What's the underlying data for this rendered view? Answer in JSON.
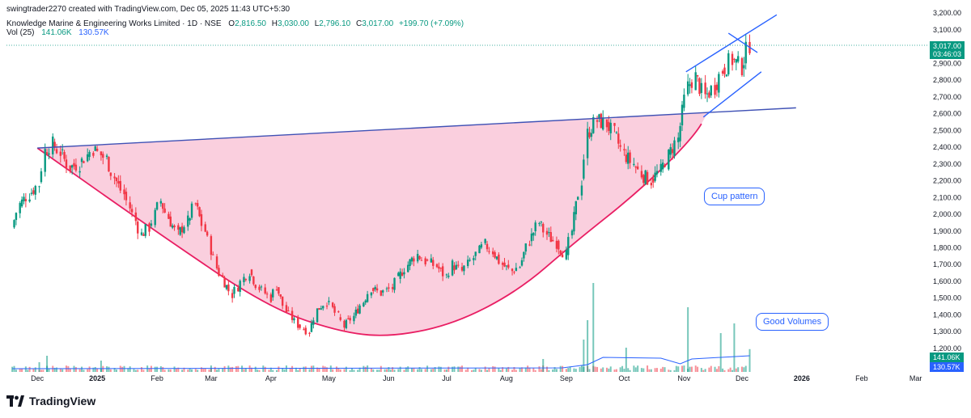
{
  "header": {
    "created_line": "swingtrader2270 created with TradingView.com, Dec 05, 2025 11:43 UTC+5:30",
    "symbol_line": "Knowledge Marine & Engineering Works Limited · 1D · NSE",
    "ohlc": {
      "o_label": "O",
      "o": "2,816.50",
      "h_label": "H",
      "h": "3,030.00",
      "l_label": "L",
      "l": "2,796.10",
      "c_label": "C",
      "c": "3,017.00",
      "chg": "+199.70 (+7.09%)"
    },
    "volume_label": "Vol (25)",
    "volume_a": "141.06K",
    "volume_b": "130.57K"
  },
  "price_tag": {
    "price": "3,017.00",
    "countdown": "03:46:03"
  },
  "volume_tags": {
    "a": "141.06K",
    "b": "130.57K"
  },
  "annotations": {
    "cup": "Cup pattern",
    "volumes": "Good Volumes"
  },
  "logo_text": "TradingView",
  "colors": {
    "up": "#089981",
    "down": "#f23645",
    "cup_fill": "#f8bbd0",
    "cup_line": "#e91e63",
    "trend_line": "#3f51b5",
    "channel": "#2962ff",
    "vol_ma": "#2962ff"
  },
  "chart_data": {
    "type": "candlestick",
    "title": "Knowledge Marine & Engineering Works Limited · 1D · NSE",
    "y_ticks": [
      1200,
      1300,
      1400,
      1500,
      1600,
      1700,
      1800,
      1900,
      2000,
      2100,
      2200,
      2300,
      2400,
      2500,
      2600,
      2700,
      2800,
      2900,
      3000,
      3100,
      3200
    ],
    "y_tick_labels": [
      "1,200.00",
      "1,300.00",
      "1,400.00",
      "1,500.00",
      "1,600.00",
      "1,700.00",
      "1,800.00",
      "1,900.00",
      "2,000.00",
      "2,100.00",
      "2,200.00",
      "2,300.00",
      "2,400.00",
      "2,500.00",
      "2,600.00",
      "2,700.00",
      "2,800.00",
      "2,900.00",
      "3,000.00",
      "3,100.00",
      "3,200.00"
    ],
    "ylim": [
      1050,
      3230
    ],
    "x_labels": [
      {
        "label": "Dec",
        "date": "2024-12-01",
        "bold": false
      },
      {
        "label": "2025",
        "date": "2025-01-01",
        "bold": true
      },
      {
        "label": "Feb",
        "date": "2025-02-01",
        "bold": false
      },
      {
        "label": "Mar",
        "date": "2025-03-01",
        "bold": false
      },
      {
        "label": "Apr",
        "date": "2025-04-01",
        "bold": false
      },
      {
        "label": "May",
        "date": "2025-05-01",
        "bold": false
      },
      {
        "label": "Jun",
        "date": "2025-06-01",
        "bold": false
      },
      {
        "label": "Jul",
        "date": "2025-07-01",
        "bold": false
      },
      {
        "label": "Aug",
        "date": "2025-08-01",
        "bold": false
      },
      {
        "label": "Sep",
        "date": "2025-09-01",
        "bold": false
      },
      {
        "label": "Oct",
        "date": "2025-10-01",
        "bold": false
      },
      {
        "label": "Nov",
        "date": "2025-11-01",
        "bold": false
      },
      {
        "label": "Dec",
        "date": "2025-12-01",
        "bold": false
      },
      {
        "label": "2026",
        "date": "2026-01-01",
        "bold": true
      },
      {
        "label": "Feb",
        "date": "2026-02-01",
        "bold": false
      },
      {
        "label": "Mar",
        "date": "2026-03-01",
        "bold": false
      }
    ],
    "x_range": [
      "2024-11-15",
      "2026-03-07"
    ],
    "close_series": [
      {
        "date": "2024-11-18",
        "close": 1920
      },
      {
        "date": "2024-11-22",
        "close": 2060
      },
      {
        "date": "2024-11-27",
        "close": 2120
      },
      {
        "date": "2024-12-02",
        "close": 2180
      },
      {
        "date": "2024-12-05",
        "close": 2380
      },
      {
        "date": "2024-12-09",
        "close": 2420
      },
      {
        "date": "2024-12-13",
        "close": 2370
      },
      {
        "date": "2024-12-18",
        "close": 2280
      },
      {
        "date": "2024-12-23",
        "close": 2300
      },
      {
        "date": "2024-12-30",
        "close": 2390
      },
      {
        "date": "2025-01-06",
        "close": 2330
      },
      {
        "date": "2025-01-10",
        "close": 2220
      },
      {
        "date": "2025-01-15",
        "close": 2120
      },
      {
        "date": "2025-01-21",
        "close": 1960
      },
      {
        "date": "2025-01-24",
        "close": 1880
      },
      {
        "date": "2025-01-28",
        "close": 1920
      },
      {
        "date": "2025-02-03",
        "close": 2080
      },
      {
        "date": "2025-02-07",
        "close": 1980
      },
      {
        "date": "2025-02-12",
        "close": 1880
      },
      {
        "date": "2025-02-17",
        "close": 1960
      },
      {
        "date": "2025-02-21",
        "close": 2060
      },
      {
        "date": "2025-02-26",
        "close": 1900
      },
      {
        "date": "2025-03-04",
        "close": 1680
      },
      {
        "date": "2025-03-07",
        "close": 1620
      },
      {
        "date": "2025-03-12",
        "close": 1520
      },
      {
        "date": "2025-03-18",
        "close": 1620
      },
      {
        "date": "2025-03-21",
        "close": 1660
      },
      {
        "date": "2025-03-26",
        "close": 1560
      },
      {
        "date": "2025-04-01",
        "close": 1500
      },
      {
        "date": "2025-04-04",
        "close": 1570
      },
      {
        "date": "2025-04-09",
        "close": 1420
      },
      {
        "date": "2025-04-15",
        "close": 1340
      },
      {
        "date": "2025-04-21",
        "close": 1300
      },
      {
        "date": "2025-04-25",
        "close": 1430
      },
      {
        "date": "2025-04-30",
        "close": 1480
      },
      {
        "date": "2025-05-06",
        "close": 1390
      },
      {
        "date": "2025-05-09",
        "close": 1330
      },
      {
        "date": "2025-05-14",
        "close": 1390
      },
      {
        "date": "2025-05-19",
        "close": 1480
      },
      {
        "date": "2025-05-23",
        "close": 1560
      },
      {
        "date": "2025-05-28",
        "close": 1530
      },
      {
        "date": "2025-06-03",
        "close": 1560
      },
      {
        "date": "2025-06-06",
        "close": 1620
      },
      {
        "date": "2025-06-11",
        "close": 1700
      },
      {
        "date": "2025-06-16",
        "close": 1760
      },
      {
        "date": "2025-06-20",
        "close": 1720
      },
      {
        "date": "2025-06-26",
        "close": 1690
      },
      {
        "date": "2025-07-01",
        "close": 1630
      },
      {
        "date": "2025-07-04",
        "close": 1700
      },
      {
        "date": "2025-07-09",
        "close": 1660
      },
      {
        "date": "2025-07-15",
        "close": 1740
      },
      {
        "date": "2025-07-21",
        "close": 1820
      },
      {
        "date": "2025-07-25",
        "close": 1780
      },
      {
        "date": "2025-07-30",
        "close": 1700
      },
      {
        "date": "2025-08-04",
        "close": 1660
      },
      {
        "date": "2025-08-08",
        "close": 1690
      },
      {
        "date": "2025-08-13",
        "close": 1840
      },
      {
        "date": "2025-08-18",
        "close": 1950
      },
      {
        "date": "2025-08-22",
        "close": 1880
      },
      {
        "date": "2025-08-27",
        "close": 1830
      },
      {
        "date": "2025-09-01",
        "close": 1760
      },
      {
        "date": "2025-09-04",
        "close": 1900
      },
      {
        "date": "2025-09-09",
        "close": 2200
      },
      {
        "date": "2025-09-12",
        "close": 2480
      },
      {
        "date": "2025-09-17",
        "close": 2560
      },
      {
        "date": "2025-09-22",
        "close": 2540
      },
      {
        "date": "2025-09-26",
        "close": 2480
      },
      {
        "date": "2025-10-01",
        "close": 2360
      },
      {
        "date": "2025-10-06",
        "close": 2300
      },
      {
        "date": "2025-10-10",
        "close": 2240
      },
      {
        "date": "2025-10-15",
        "close": 2200
      },
      {
        "date": "2025-10-20",
        "close": 2260
      },
      {
        "date": "2025-10-24",
        "close": 2350
      },
      {
        "date": "2025-10-29",
        "close": 2450
      },
      {
        "date": "2025-11-03",
        "close": 2760
      },
      {
        "date": "2025-11-07",
        "close": 2820
      },
      {
        "date": "2025-11-12",
        "close": 2700
      },
      {
        "date": "2025-11-17",
        "close": 2760
      },
      {
        "date": "2025-11-21",
        "close": 2860
      },
      {
        "date": "2025-11-26",
        "close": 2920
      },
      {
        "date": "2025-12-01",
        "close": 2880
      },
      {
        "date": "2025-12-05",
        "close": 3017
      }
    ],
    "volume_series": [
      {
        "date": "2024-12-02",
        "volume": 0.6
      },
      {
        "date": "2024-12-06",
        "volume": 1.0
      },
      {
        "date": "2025-01-03",
        "volume": 0.7
      },
      {
        "date": "2025-03-01",
        "volume": 0.4
      },
      {
        "date": "2025-06-01",
        "volume": 0.3
      },
      {
        "date": "2025-08-20",
        "volume": 0.8
      },
      {
        "date": "2025-09-10",
        "volume": 2.0
      },
      {
        "date": "2025-09-12",
        "volume": 3.2
      },
      {
        "date": "2025-09-15",
        "volume": 5.5
      },
      {
        "date": "2025-10-02",
        "volume": 1.5
      },
      {
        "date": "2025-11-03",
        "volume": 4.0
      },
      {
        "date": "2025-11-20",
        "volume": 2.4
      },
      {
        "date": "2025-11-27",
        "volume": 3.0
      },
      {
        "date": "2025-12-05",
        "volume": 1.41
      }
    ],
    "trendlines": [
      {
        "name": "rim",
        "from": {
          "date": "2024-12-01",
          "price": 2395
        },
        "to": {
          "date": "2025-12-29",
          "price": 2635
        }
      },
      {
        "name": "channel-upper",
        "from": {
          "date": "2025-11-02",
          "price": 2850
        },
        "to": {
          "date": "2025-12-19",
          "price": 3190
        }
      },
      {
        "name": "channel-lower",
        "from": {
          "date": "2025-11-11",
          "price": 2580
        },
        "to": {
          "date": "2025-12-11",
          "price": 2850
        }
      },
      {
        "name": "flag",
        "from": {
          "date": "2025-11-24",
          "price": 3080
        },
        "to": {
          "date": "2025-12-09",
          "price": 2965
        }
      }
    ],
    "cup_curve": [
      {
        "date": "2024-12-01",
        "price": 2395
      },
      {
        "date": "2025-01-31",
        "price": 1900
      },
      {
        "date": "2025-03-31",
        "price": 1440
      },
      {
        "date": "2025-05-09",
        "price": 1290
      },
      {
        "date": "2025-06-04",
        "price": 1270
      },
      {
        "date": "2025-07-06",
        "price": 1350
      },
      {
        "date": "2025-08-08",
        "price": 1550
      },
      {
        "date": "2025-09-04",
        "price": 1820
      },
      {
        "date": "2025-10-09",
        "price": 2140
      },
      {
        "date": "2025-11-06",
        "price": 2460
      },
      {
        "date": "2025-11-14",
        "price": 2620
      }
    ],
    "grid": false,
    "legend": "top-left"
  }
}
